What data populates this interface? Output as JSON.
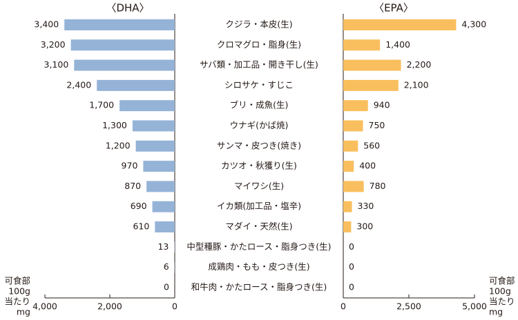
{
  "chart_data": [
    {
      "type": "bar",
      "title": "〈DHA〉",
      "categories": [
        "クジラ・本皮(生)",
        "クロマグロ・脂身(生)",
        "サバ類・加工品・開き干し(生)",
        "シロサケ・すじこ",
        "ブリ・成魚(生)",
        "ウナギ(かば焼)",
        "サンマ・皮つき(焼き)",
        "カツオ・秋獲り(生)",
        "マイワシ(生)",
        "イカ類(加工品・塩辛)",
        "マダイ・天然(生)",
        "中型種豚・かたロース・脂身つき(生)",
        "成鶏肉・もも・皮つき(生)",
        "和牛肉・かたロース・脂身つき(生)"
      ],
      "values": [
        3400,
        3200,
        3100,
        2400,
        1700,
        1300,
        1200,
        970,
        870,
        690,
        610,
        13,
        6,
        0
      ],
      "value_labels": [
        "3,400",
        "3,200",
        "3,100",
        "2,400",
        "1,700",
        "1,300",
        "1,200",
        "970",
        "870",
        "690",
        "610",
        "13",
        "6",
        "0"
      ],
      "color": "#95b3d7",
      "xlim": [
        0,
        4000
      ],
      "reversed": true,
      "xticks": [
        {
          "value": 4000,
          "label": "4,000"
        },
        {
          "value": 2000,
          "label": "2,000"
        },
        0
      ],
      "unit_label": [
        "可食部",
        "100g",
        "当たり",
        "mg"
      ]
    },
    {
      "type": "bar",
      "title": "〈EPA〉",
      "values": [
        4300,
        1400,
        2200,
        2100,
        940,
        750,
        560,
        400,
        780,
        330,
        300,
        0,
        0,
        0
      ],
      "value_labels": [
        "4,300",
        "1,400",
        "2,200",
        "2,100",
        "940",
        "750",
        "560",
        "400",
        "780",
        "330",
        "300",
        "0",
        "0",
        "0"
      ],
      "color": "#f9bf5e",
      "xlim": [
        0,
        5000
      ],
      "reversed": false,
      "xticks": [
        0,
        {
          "value": 2500,
          "label": "2,500"
        },
        {
          "value": 5000,
          "label": "5,000"
        }
      ],
      "unit_label": [
        "可食部",
        "100g",
        "当たり",
        "mg"
      ]
    }
  ]
}
